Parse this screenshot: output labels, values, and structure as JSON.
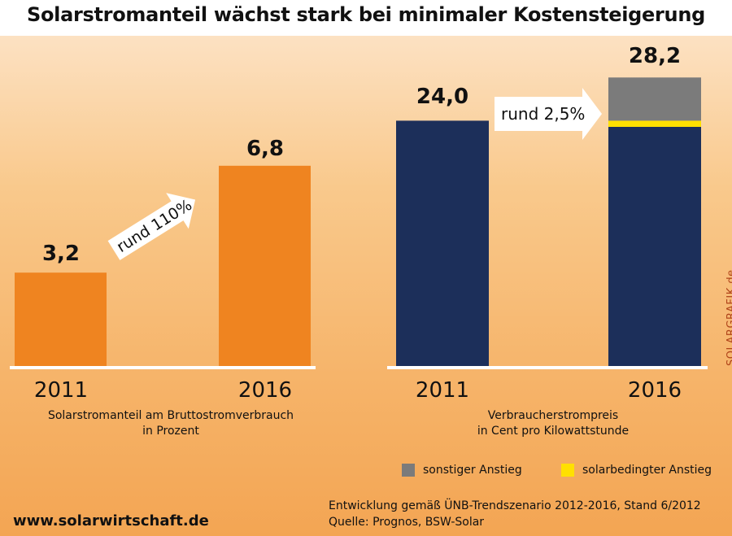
{
  "title": "Solarstromanteil wächst stark bei minimaler Kostensteigerung",
  "colors": {
    "orange": "#ef8420",
    "navy": "#1c2f5a",
    "grey": "#7b7b7b",
    "yellow": "#ffe000"
  },
  "chart_data": [
    {
      "type": "bar",
      "categories": [
        "2011",
        "2016"
      ],
      "values": [
        3.2,
        6.8
      ],
      "value_labels": [
        "3,2",
        "6,8"
      ],
      "caption_line1": "Solarstromanteil am Bruttostromverbrauch",
      "caption_line2": "in Prozent",
      "arrow_label": "rund 110%"
    },
    {
      "type": "bar",
      "stacked": true,
      "categories": [
        "2011",
        "2016"
      ],
      "value_labels": [
        "24,0",
        "28,2"
      ],
      "series": [
        {
          "values": [
            24.0,
            23.4
          ]
        },
        {
          "name": "solarbedingter Anstieg",
          "values": [
            0,
            0.6
          ]
        },
        {
          "name": "sonstiger Anstieg",
          "values": [
            0,
            4.2
          ]
        }
      ],
      "caption_line1": "Verbraucherstrompreis",
      "caption_line2": "in Cent pro Kilowattstunde",
      "arrow_label": "rund 2,5%"
    }
  ],
  "legend": {
    "item1": "sonstiger Anstieg",
    "item2": "solarbedingter Anstieg"
  },
  "footnote_line1": "Entwicklung gemäß ÜNB-Trendszenario 2012-2016, Stand 6/2012",
  "footnote_line2": "Quelle: Prognos, BSW-Solar",
  "site": "www.solarwirtschaft.de",
  "watermark": "SOLARGRAFIK.de"
}
